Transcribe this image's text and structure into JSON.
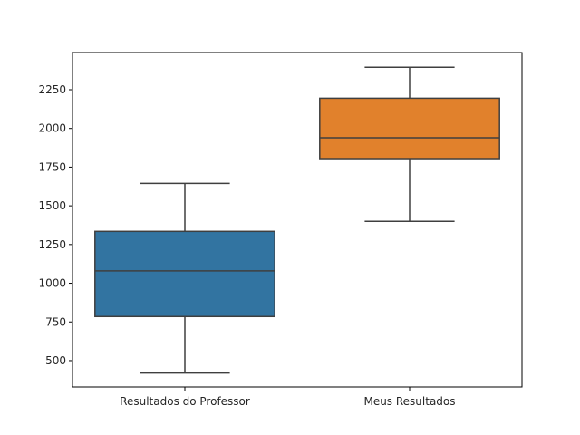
{
  "chart_data": {
    "type": "boxplot",
    "title": "",
    "xlabel": "",
    "ylabel": "",
    "ylim": [
      330,
      2490
    ],
    "yticks": [
      500,
      750,
      1000,
      1250,
      1500,
      1750,
      2000,
      2250
    ],
    "ytick_labels": [
      "500",
      "750",
      "1000",
      "1250",
      "1500",
      "1750",
      "2000",
      "2250"
    ],
    "categories": [
      "Resultados do Professor",
      "Meus Resultados"
    ],
    "boxes": [
      {
        "name": "Resultados do Professor",
        "whisker_low": 420,
        "q1": 785,
        "median": 1080,
        "q3": 1335,
        "whisker_high": 1645,
        "color": "#3274a1"
      },
      {
        "name": "Meus Resultados",
        "whisker_low": 1400,
        "q1": 1805,
        "median": 1940,
        "q3": 2195,
        "whisker_high": 2395,
        "color": "#e1812c"
      }
    ],
    "grid": false
  }
}
